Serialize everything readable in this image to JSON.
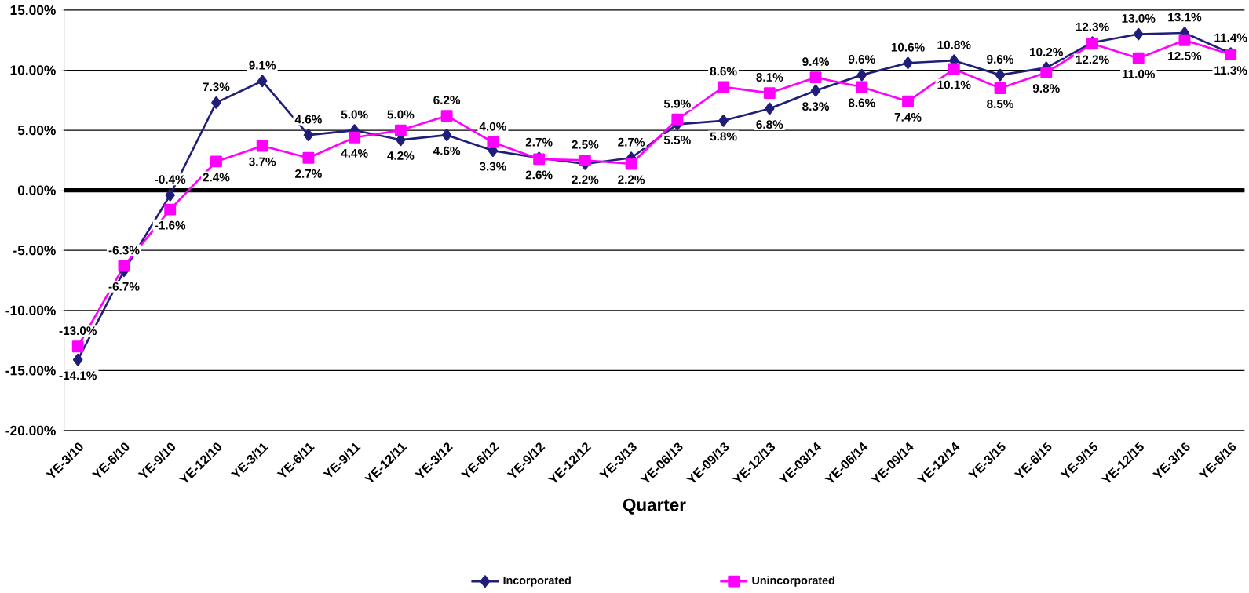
{
  "chart_data": {
    "type": "line",
    "xlabel": "Quarter",
    "categories": [
      "YE-3/10",
      "YE-6/10",
      "YE-9/10",
      "YE-12/10",
      "YE-3/11",
      "YE-6/11",
      "YE-9/11",
      "YE-12/11",
      "YE-3/12",
      "YE-6/12",
      "YE-9/12",
      "YE-12/12",
      "YE-3/13",
      "YE-06/13",
      "YE-09/13",
      "YE-12/13",
      "YE-03/14",
      "YE-06/14",
      "YE-09/14",
      "YE-12/14",
      "YE-3/15",
      "YE-6/15",
      "YE-9/15",
      "YE-12/15",
      "YE-3/16",
      "YE-6/16"
    ],
    "series": [
      {
        "name": "Incorporated",
        "color": "#1f1f7a",
        "marker": "diamond",
        "values": [
          -14.1,
          -6.7,
          -0.4,
          7.3,
          9.1,
          4.6,
          5.0,
          4.2,
          4.6,
          3.3,
          2.7,
          2.2,
          2.7,
          5.5,
          5.8,
          6.8,
          8.3,
          9.6,
          10.6,
          10.8,
          9.6,
          10.2,
          12.3,
          13.0,
          13.1,
          11.4
        ],
        "value_labels": [
          "-14.1%",
          "-6.7%",
          "-0.4%",
          "7.3%",
          "9.1%",
          "4.6%",
          "5.0%",
          "4.2%",
          "4.6%",
          "3.3%",
          "2.7%",
          "2.2%",
          "2.7%",
          "5.5%",
          "5.8%",
          "6.8%",
          "8.3%",
          "9.6%",
          "10.6%",
          "10.8%",
          "9.6%",
          "10.2%",
          "12.3%",
          "13.0%",
          "13.1%",
          "11.4%"
        ]
      },
      {
        "name": "Unincorporated",
        "color": "#ff00ff",
        "marker": "square",
        "values": [
          -13.0,
          -6.3,
          -1.6,
          2.4,
          3.7,
          2.7,
          4.4,
          5.0,
          6.2,
          4.0,
          2.6,
          2.5,
          2.2,
          5.9,
          8.6,
          8.1,
          9.4,
          8.6,
          7.4,
          10.1,
          8.5,
          9.8,
          12.2,
          11.0,
          12.5,
          11.3
        ],
        "value_labels": [
          "-13.0%",
          "-6.3%",
          "-1.6%",
          "2.4%",
          "3.7%",
          "2.7%",
          "4.4%",
          "5.0%",
          "6.2%",
          "4.0%",
          "2.6%",
          "2.5%",
          "2.2%",
          "5.9%",
          "8.6%",
          "8.1%",
          "9.4%",
          "8.6%",
          "7.4%",
          "10.1%",
          "8.5%",
          "9.8%",
          "12.2%",
          "11.0%",
          "12.5%",
          "11.3%"
        ]
      }
    ],
    "ylim": [
      -20,
      15
    ],
    "yticks": [
      {
        "value": -20,
        "label": "-20.00%"
      },
      {
        "value": -15,
        "label": "-15.00%"
      },
      {
        "value": -10,
        "label": "-10.00%"
      },
      {
        "value": -5,
        "label": "-5.00%"
      },
      {
        "value": 0,
        "label": "0.00%"
      },
      {
        "value": 5,
        "label": "5.00%"
      },
      {
        "value": 10,
        "label": "10.00%"
      },
      {
        "value": 15,
        "label": "15.00%"
      }
    ],
    "grid": "y",
    "legend": "bottom"
  }
}
